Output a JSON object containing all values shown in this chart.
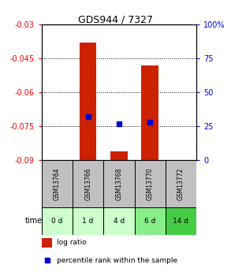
{
  "title": "GDS944 / 7327",
  "samples": [
    "GSM13764",
    "GSM13766",
    "GSM13768",
    "GSM13770",
    "GSM13772"
  ],
  "time_labels": [
    "0 d",
    "1 d",
    "4 d",
    "6 d",
    "14 d"
  ],
  "log_ratio": [
    0.0,
    -0.038,
    -0.086,
    -0.048,
    0.0
  ],
  "percentile_rank": [
    null,
    32,
    27,
    28,
    null
  ],
  "ylim_left": [
    -0.09,
    -0.03
  ],
  "ylim_right": [
    0,
    100
  ],
  "yticks_left": [
    -0.09,
    -0.075,
    -0.06,
    -0.045,
    -0.03
  ],
  "yticks_right": [
    0,
    25,
    50,
    75,
    100
  ],
  "bar_color": "#cc2200",
  "dot_color": "#0000cc",
  "bg_color": "#ffffff",
  "sample_header_color": "#c0c0c0",
  "time_row_colors": [
    "#ccffcc",
    "#ccffcc",
    "#ccffcc",
    "#88ee88",
    "#44cc44"
  ],
  "legend_bar_label": "log ratio",
  "legend_dot_label": "percentile rank within the sample",
  "bar_width": 0.55
}
